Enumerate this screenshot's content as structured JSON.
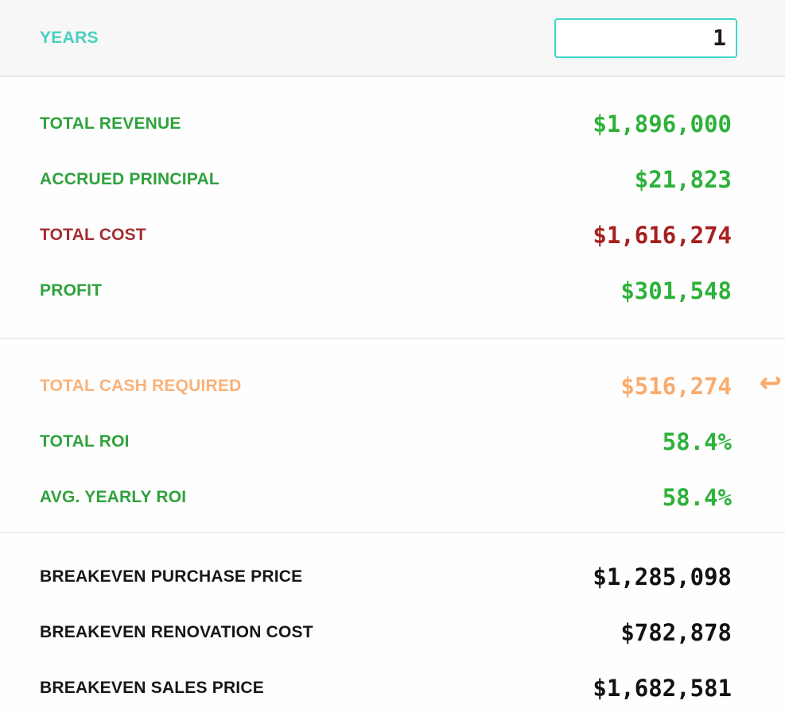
{
  "years_row": {
    "label": "YEARS",
    "input_value": "1"
  },
  "sections": [
    {
      "name": "totals",
      "rows": [
        {
          "label": "TOTAL REVENUE",
          "value": "$1,896,000",
          "color": "green"
        },
        {
          "label": "ACCRUED PRINCIPAL",
          "value": "$21,823",
          "color": "green"
        },
        {
          "label": "TOTAL COST",
          "value": "$1,616,274",
          "color": "red"
        },
        {
          "label": "PROFIT",
          "value": "$301,548",
          "color": "green"
        }
      ]
    },
    {
      "name": "roi",
      "rows": [
        {
          "label": "TOTAL CASH REQUIRED",
          "value": "$516,274",
          "color": "orange",
          "icon": "return-arrow"
        },
        {
          "label": "TOTAL ROI",
          "value": "58.4%",
          "color": "green"
        },
        {
          "label": "AVG. YEARLY ROI",
          "value": "58.4%",
          "color": "green"
        }
      ]
    },
    {
      "name": "breakeven",
      "rows": [
        {
          "label": "BREAKEVEN PURCHASE PRICE",
          "value": "$1,285,098",
          "color": "black"
        },
        {
          "label": "BREAKEVEN RENOVATION COST",
          "value": "$782,878",
          "color": "black"
        },
        {
          "label": "BREAKEVEN SALES PRICE",
          "value": "$1,682,581",
          "color": "black"
        }
      ]
    }
  ],
  "icons": {
    "return_arrow": "↩"
  },
  "colors": {
    "teal_accent": "#3fd6c5",
    "teal_label": "#48d0c2",
    "green_label": "#2fa23c",
    "green_value": "#2eb13a",
    "red_label": "#a32e2e",
    "red_value": "#a62020",
    "orange_label": "#fbb178",
    "orange_value": "#f9ab6c",
    "black_label": "#161616",
    "header_background": "#f7f7f8",
    "divider": "#ececec"
  }
}
